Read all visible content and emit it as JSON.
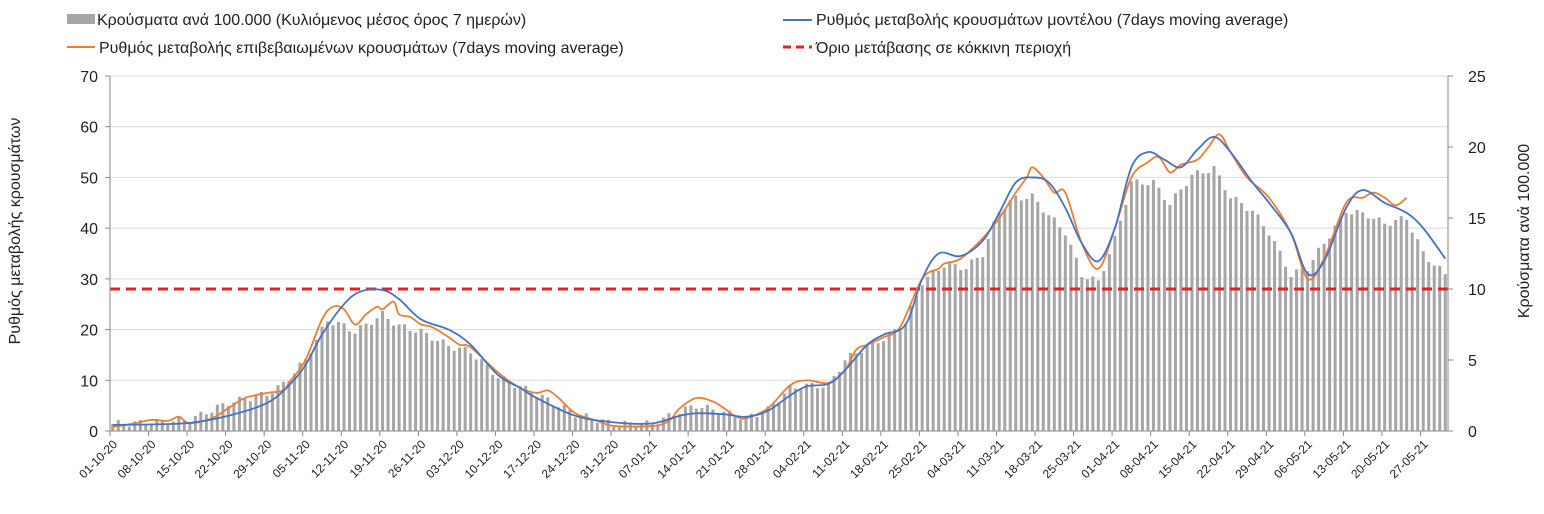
{
  "chart_data": {
    "type": "bar+line",
    "title": "",
    "y_left_label": "Ρυθμός μεταβολής κρουσμάτων",
    "y_right_label": "Κρούσματα ανά 100.000",
    "y_left_lim": [
      0,
      70
    ],
    "y_left_ticks": [
      "0",
      "10",
      "20",
      "30",
      "40",
      "50",
      "60",
      "70"
    ],
    "y_right_lim": [
      0,
      25
    ],
    "y_right_ticks": [
      "0",
      "5",
      "10",
      "15",
      "20",
      "25"
    ],
    "x_start": "2020-10-01",
    "x_end": "2021-05-31",
    "x_tick_labels": [
      "01-10-20",
      "08-10-20",
      "15-10-20",
      "22-10-20",
      "29-10-20",
      "05-11-20",
      "12-11-20",
      "19-11-20",
      "26-11-20",
      "03-12-20",
      "10-12-20",
      "17-12-20",
      "24-12-20",
      "31-12-20",
      "07-01-21",
      "14-01-21",
      "21-01-21",
      "28-01-21",
      "04-02-21",
      "11-02-21",
      "18-02-21",
      "25-02-21",
      "04-03-21",
      "11-03-21",
      "18-03-21",
      "25-03-21",
      "01-04-21",
      "08-04-21",
      "15-04-21",
      "22-04-21",
      "29-04-21",
      "06-05-21",
      "13-05-21",
      "20-05-21",
      "27-05-21"
    ],
    "legend_position": "top",
    "gridlines": true,
    "threshold": {
      "name": "Όριο μετάβασης σε κόκκινη περιοχή",
      "value_left_axis": 28,
      "color": "#e8201c"
    },
    "series": [
      {
        "name": "Κρούσματα ανά 100.000 (Κυλιόμενος μέσος όρος 7 ημερών)",
        "kind": "bar",
        "axis": "right",
        "color": "#a6a6a6",
        "anchors": [
          [
            "2020-10-01",
            0.5
          ],
          [
            "2020-10-08",
            0.6
          ],
          [
            "2020-10-15",
            0.8
          ],
          [
            "2020-10-22",
            2.0
          ],
          [
            "2020-10-29",
            2.6
          ],
          [
            "2020-11-01",
            3.3
          ],
          [
            "2020-11-05",
            5.0
          ],
          [
            "2020-11-09",
            7.8
          ],
          [
            "2020-11-12",
            7.4
          ],
          [
            "2020-11-14",
            7.0
          ],
          [
            "2020-11-19",
            8.2
          ],
          [
            "2020-11-22",
            7.4
          ],
          [
            "2020-11-26",
            7.0
          ],
          [
            "2020-12-01",
            6.0
          ],
          [
            "2020-12-05",
            5.6
          ],
          [
            "2020-12-10",
            3.8
          ],
          [
            "2020-12-17",
            2.6
          ],
          [
            "2020-12-24",
            1.2
          ],
          [
            "2020-12-31",
            0.5
          ],
          [
            "2021-01-07",
            0.5
          ],
          [
            "2021-01-12",
            1.4
          ],
          [
            "2021-01-15",
            1.8
          ],
          [
            "2021-01-20",
            1.3
          ],
          [
            "2021-01-24",
            0.9
          ],
          [
            "2021-01-28",
            1.5
          ],
          [
            "2021-02-01",
            3.0
          ],
          [
            "2021-02-04",
            3.2
          ],
          [
            "2021-02-08",
            3.2
          ],
          [
            "2021-02-11",
            5.0
          ],
          [
            "2021-02-15",
            6.0
          ],
          [
            "2021-02-18",
            6.5
          ],
          [
            "2021-02-22",
            7.6
          ],
          [
            "2021-02-25",
            10.5
          ],
          [
            "2021-03-01",
            11.7
          ],
          [
            "2021-03-05",
            11.5
          ],
          [
            "2021-03-08",
            12.5
          ],
          [
            "2021-03-11",
            15.5
          ],
          [
            "2021-03-14",
            16.4
          ],
          [
            "2021-03-17",
            16.5
          ],
          [
            "2021-03-20",
            15.2
          ],
          [
            "2021-03-23",
            14.0
          ],
          [
            "2021-03-26",
            11.0
          ],
          [
            "2021-03-29",
            10.5
          ],
          [
            "2021-04-01",
            13.5
          ],
          [
            "2021-04-04",
            17.5
          ],
          [
            "2021-04-08",
            17.5
          ],
          [
            "2021-04-11",
            16.0
          ],
          [
            "2021-04-15",
            18.0
          ],
          [
            "2021-04-19",
            18.5
          ],
          [
            "2021-04-22",
            16.5
          ],
          [
            "2021-04-26",
            15.5
          ],
          [
            "2021-04-29",
            14.0
          ],
          [
            "2021-05-03",
            11.0
          ],
          [
            "2021-05-06",
            11.5
          ],
          [
            "2021-05-10",
            13.8
          ],
          [
            "2021-05-13",
            15.5
          ],
          [
            "2021-05-17",
            15.2
          ],
          [
            "2021-05-20",
            14.6
          ],
          [
            "2021-05-24",
            15.0
          ],
          [
            "2021-05-27",
            12.5
          ],
          [
            "2021-05-31",
            11.0
          ]
        ]
      },
      {
        "name": "Ρυθμός μεταβολής κρουσμάτων μοντέλου (7days moving average)",
        "kind": "line",
        "axis": "left",
        "color": "#4472c4",
        "points": [
          [
            "2020-10-01",
            1.2
          ],
          [
            "2020-10-08",
            1.3
          ],
          [
            "2020-10-15",
            1.6
          ],
          [
            "2020-10-22",
            3.0
          ],
          [
            "2020-10-29",
            5.5
          ],
          [
            "2020-11-02",
            9.0
          ],
          [
            "2020-11-05",
            13.0
          ],
          [
            "2020-11-08",
            19.0
          ],
          [
            "2020-11-12",
            25.0
          ],
          [
            "2020-11-15",
            27.5
          ],
          [
            "2020-11-19",
            27.8
          ],
          [
            "2020-11-22",
            26.0
          ],
          [
            "2020-11-26",
            22.0
          ],
          [
            "2020-12-01",
            20.0
          ],
          [
            "2020-12-05",
            17.0
          ],
          [
            "2020-12-10",
            11.0
          ],
          [
            "2020-12-14",
            8.5
          ],
          [
            "2020-12-17",
            6.5
          ],
          [
            "2020-12-24",
            3.0
          ],
          [
            "2020-12-31",
            1.7
          ],
          [
            "2021-01-07",
            1.5
          ],
          [
            "2021-01-12",
            3.0
          ],
          [
            "2021-01-15",
            3.5
          ],
          [
            "2021-01-20",
            3.3
          ],
          [
            "2021-01-24",
            2.8
          ],
          [
            "2021-01-28",
            4.0
          ],
          [
            "2021-02-01",
            7.0
          ],
          [
            "2021-02-04",
            8.8
          ],
          [
            "2021-02-08",
            9.3
          ],
          [
            "2021-02-11",
            12.0
          ],
          [
            "2021-02-15",
            17.0
          ],
          [
            "2021-02-18",
            19.0
          ],
          [
            "2021-02-22",
            21.0
          ],
          [
            "2021-02-25",
            30.0
          ],
          [
            "2021-02-28",
            35.0
          ],
          [
            "2021-03-04",
            34.5
          ],
          [
            "2021-03-08",
            37.5
          ],
          [
            "2021-03-11",
            43.0
          ],
          [
            "2021-03-14",
            49.0
          ],
          [
            "2021-03-17",
            50.0
          ],
          [
            "2021-03-20",
            49.0
          ],
          [
            "2021-03-23",
            44.0
          ],
          [
            "2021-03-26",
            37.0
          ],
          [
            "2021-03-29",
            33.5
          ],
          [
            "2021-04-01",
            40.0
          ],
          [
            "2021-04-04",
            52.0
          ],
          [
            "2021-04-07",
            55.0
          ],
          [
            "2021-04-10",
            53.5
          ],
          [
            "2021-04-13",
            52.0
          ],
          [
            "2021-04-16",
            55.5
          ],
          [
            "2021-04-19",
            58.0
          ],
          [
            "2021-04-22",
            55.0
          ],
          [
            "2021-04-26",
            49.0
          ],
          [
            "2021-04-29",
            45.0
          ],
          [
            "2021-05-03",
            39.0
          ],
          [
            "2021-05-06",
            31.0
          ],
          [
            "2021-05-09",
            33.5
          ],
          [
            "2021-05-13",
            44.0
          ],
          [
            "2021-05-16",
            47.5
          ],
          [
            "2021-05-20",
            45.0
          ],
          [
            "2021-05-24",
            43.0
          ],
          [
            "2021-05-27",
            40.0
          ],
          [
            "2021-05-31",
            34.0
          ]
        ]
      },
      {
        "name": "Ρυθμός μεταβολής επιβεβαιωμένων κρουσμάτων (7days moving average)",
        "kind": "line",
        "axis": "left",
        "color": "#ed7d31",
        "points": [
          [
            "2020-10-01",
            0.8
          ],
          [
            "2020-10-05",
            1.5
          ],
          [
            "2020-10-08",
            2.2
          ],
          [
            "2020-10-11",
            2.0
          ],
          [
            "2020-10-13",
            2.8
          ],
          [
            "2020-10-15",
            1.5
          ],
          [
            "2020-10-19",
            2.5
          ],
          [
            "2020-10-22",
            4.5
          ],
          [
            "2020-10-25",
            6.5
          ],
          [
            "2020-10-29",
            7.5
          ],
          [
            "2020-11-01",
            8.0
          ],
          [
            "2020-11-02",
            9.5
          ],
          [
            "2020-11-05",
            14.0
          ],
          [
            "2020-11-08",
            22.0
          ],
          [
            "2020-11-10",
            24.5
          ],
          [
            "2020-11-12",
            24.0
          ],
          [
            "2020-11-14",
            21.0
          ],
          [
            "2020-11-16",
            23.0
          ],
          [
            "2020-11-18",
            24.5
          ],
          [
            "2020-11-19",
            24.0
          ],
          [
            "2020-11-21",
            25.5
          ],
          [
            "2020-11-22",
            23.0
          ],
          [
            "2020-11-24",
            22.5
          ],
          [
            "2020-11-26",
            21.0
          ],
          [
            "2020-11-28",
            20.5
          ],
          [
            "2020-12-01",
            18.5
          ],
          [
            "2020-12-03",
            17.0
          ],
          [
            "2020-12-05",
            16.5
          ],
          [
            "2020-12-10",
            11.5
          ],
          [
            "2020-12-14",
            8.5
          ],
          [
            "2020-12-17",
            7.5
          ],
          [
            "2020-12-19",
            8.0
          ],
          [
            "2020-12-21",
            6.5
          ],
          [
            "2020-12-24",
            3.5
          ],
          [
            "2020-12-28",
            2.0
          ],
          [
            "2020-12-31",
            1.0
          ],
          [
            "2021-01-07",
            1.0
          ],
          [
            "2021-01-10",
            2.0
          ],
          [
            "2021-01-12",
            4.5
          ],
          [
            "2021-01-15",
            6.5
          ],
          [
            "2021-01-18",
            5.8
          ],
          [
            "2021-01-20",
            4.5
          ],
          [
            "2021-01-22",
            3.0
          ],
          [
            "2021-01-24",
            2.5
          ],
          [
            "2021-01-28",
            4.5
          ],
          [
            "2021-02-01",
            9.0
          ],
          [
            "2021-02-04",
            10.0
          ],
          [
            "2021-02-08",
            9.5
          ],
          [
            "2021-02-11",
            12.0
          ],
          [
            "2021-02-13",
            16.0
          ],
          [
            "2021-02-15",
            17.0
          ],
          [
            "2021-02-18",
            18.5
          ],
          [
            "2021-02-21",
            20.5
          ],
          [
            "2021-02-25",
            30.0
          ],
          [
            "2021-02-28",
            32.0
          ],
          [
            "2021-03-01",
            33.0
          ],
          [
            "2021-03-04",
            34.0
          ],
          [
            "2021-03-08",
            38.0
          ],
          [
            "2021-03-11",
            42.0
          ],
          [
            "2021-03-14",
            47.0
          ],
          [
            "2021-03-16",
            50.0
          ],
          [
            "2021-03-17",
            52.0
          ],
          [
            "2021-03-19",
            50.0
          ],
          [
            "2021-03-21",
            47.0
          ],
          [
            "2021-03-23",
            47.0
          ],
          [
            "2021-03-26",
            37.0
          ],
          [
            "2021-03-29",
            32.0
          ],
          [
            "2021-04-01",
            40.0
          ],
          [
            "2021-04-04",
            50.0
          ],
          [
            "2021-04-07",
            53.0
          ],
          [
            "2021-04-09",
            54.0
          ],
          [
            "2021-04-11",
            51.0
          ],
          [
            "2021-04-13",
            52.5
          ],
          [
            "2021-04-16",
            53.5
          ],
          [
            "2021-04-18",
            56.0
          ],
          [
            "2021-04-20",
            58.5
          ],
          [
            "2021-04-22",
            55.0
          ],
          [
            "2021-04-25",
            50.0
          ],
          [
            "2021-04-29",
            46.0
          ],
          [
            "2021-05-03",
            39.0
          ],
          [
            "2021-05-06",
            30.0
          ],
          [
            "2021-05-09",
            34.0
          ],
          [
            "2021-05-13",
            45.0
          ],
          [
            "2021-05-16",
            46.0
          ],
          [
            "2021-05-18",
            47.0
          ],
          [
            "2021-05-20",
            46.0
          ],
          [
            "2021-05-22",
            44.5
          ],
          [
            "2021-05-24",
            46.0
          ]
        ]
      }
    ]
  }
}
